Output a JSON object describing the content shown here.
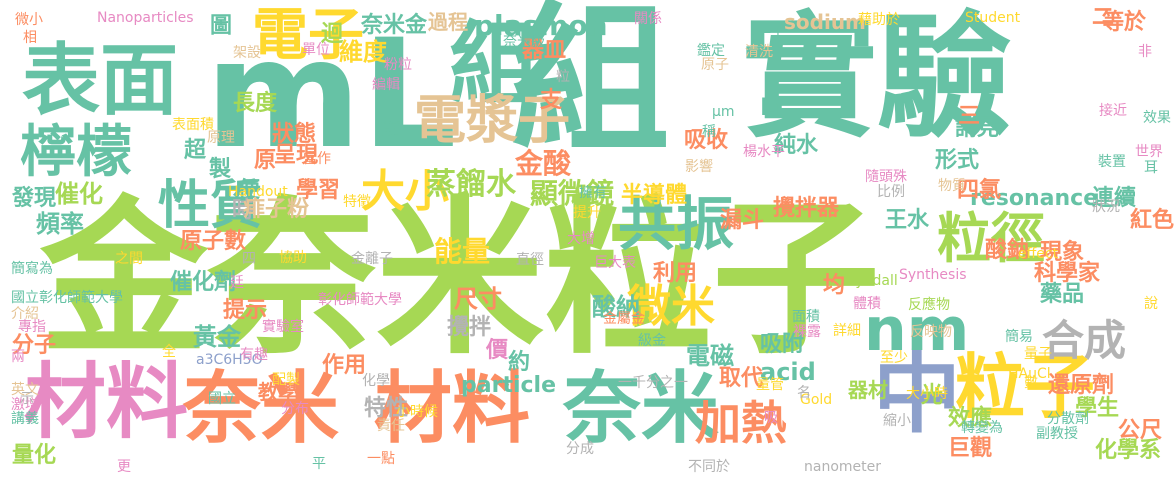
{
  "palette": {
    "green": "#a6d854",
    "teal": "#66c2a5",
    "orange": "#fc8d62",
    "blue": "#8da0cb",
    "pink": "#e78ac3",
    "yellow": "#ffd92f",
    "tan": "#e5c494",
    "gray": "#b3b3b3"
  },
  "words": [
    {
      "text": "金奈米粒子"
    },
    {
      "text": "mL"
    },
    {
      "text": "組"
    },
    {
      "text": "實驗"
    },
    {
      "text": "表面"
    },
    {
      "text": "檸檬"
    },
    {
      "text": "電子"
    },
    {
      "text": "組"
    },
    {
      "text": "材料"
    },
    {
      "text": "奈米"
    },
    {
      "text": "材料"
    },
    {
      "text": "奈米"
    },
    {
      "text": "中"
    },
    {
      "text": "粒子"
    },
    {
      "text": "nm"
    },
    {
      "text": "電漿子"
    },
    {
      "text": "粒徑"
    },
    {
      "text": "共振"
    },
    {
      "text": "性質"
    },
    {
      "text": "大小"
    },
    {
      "text": "微米"
    },
    {
      "text": "合成"
    },
    {
      "text": "加熱"
    },
    {
      "text": "plasmon"
    },
    {
      "text": "蒸餾水"
    },
    {
      "text": "金酸"
    },
    {
      "text": "顯微鏡"
    },
    {
      "text": "能量"
    },
    {
      "text": "催化"
    },
    {
      "text": "頻率"
    },
    {
      "text": "維度"
    },
    {
      "text": "過程"
    },
    {
      "text": "器皿"
    },
    {
      "text": "圖"
    },
    {
      "text": "長度"
    },
    {
      "text": "狀態"
    },
    {
      "text": "呈現"
    },
    {
      "text": "學習"
    },
    {
      "text": "原子數"
    },
    {
      "text": "催化劑"
    },
    {
      "text": "黃金"
    },
    {
      "text": "利用"
    },
    {
      "text": "尺寸"
    },
    {
      "text": "酸納"
    },
    {
      "text": "電磁"
    },
    {
      "text": "吸附"
    },
    {
      "text": "acid"
    },
    {
      "text": "取代"
    },
    {
      "text": "半導體"
    },
    {
      "text": "漏斗"
    },
    {
      "text": "攪拌器"
    },
    {
      "text": "王水"
    },
    {
      "text": "現象"
    },
    {
      "text": "藥品"
    },
    {
      "text": "學生"
    },
    {
      "text": "還原劑"
    },
    {
      "text": "效應"
    },
    {
      "text": "化學系"
    },
    {
      "text": "巨觀"
    },
    {
      "text": "公尺"
    },
    {
      "text": "酸鈉"
    },
    {
      "text": "科學家"
    },
    {
      "text": "分子"
    },
    {
      "text": "量化"
    },
    {
      "text": "教學"
    },
    {
      "text": "器材"
    },
    {
      "text": "resonance"
    },
    {
      "text": "連續"
    },
    {
      "text": "四氯"
    },
    {
      "text": "紅色"
    },
    {
      "text": "sodium"
    },
    {
      "text": "等於"
    },
    {
      "text": "吸收"
    },
    {
      "text": "純水"
    },
    {
      "text": "形式"
    },
    {
      "text": "請見"
    },
    {
      "text": "particle"
    },
    {
      "text": "價"
    },
    {
      "text": "約"
    },
    {
      "text": "攪拌"
    },
    {
      "text": "特性"
    },
    {
      "text": "作用"
    },
    {
      "text": "提示"
    },
    {
      "text": "原"
    },
    {
      "text": "超"
    },
    {
      "text": "製"
    },
    {
      "text": "便"
    },
    {
      "text": "時"
    },
    {
      "text": "節"
    },
    {
      "text": "迴"
    },
    {
      "text": "支"
    },
    {
      "text": "M"
    },
    {
      "text": "光"
    },
    {
      "text": "均"
    },
    {
      "text": "發現"
    },
    {
      "text": "二"
    },
    {
      "text": "三"
    },
    {
      "text": "痱子粉"
    },
    {
      "text": "奈米金"
    },
    {
      "text": "Nanoparticles"
    },
    {
      "text": "Student"
    },
    {
      "text": "Handout"
    },
    {
      "text": "Synthesis"
    },
    {
      "text": "Tyndall"
    },
    {
      "text": "effect"
    },
    {
      "text": "HAuCl"
    },
    {
      "text": "a3C6H5O"
    },
    {
      "text": "nanometer"
    },
    {
      "text": "Gold"
    },
    {
      "text": "國立彰化師範大學"
    },
    {
      "text": "彰化師範大學"
    },
    {
      "text": "實驗室"
    },
    {
      "text": "簡寫為"
    },
    {
      "text": "介紹"
    },
    {
      "text": "專指"
    },
    {
      "text": "英文"
    },
    {
      "text": "講義"
    },
    {
      "text": "激增"
    },
    {
      "text": "兩"
    },
    {
      "text": "微小"
    },
    {
      "text": "相"
    },
    {
      "text": "架設"
    },
    {
      "text": "單位"
    },
    {
      "text": "粉粒"
    },
    {
      "text": "編輯"
    },
    {
      "text": "藉助於"
    },
    {
      "text": "關係"
    },
    {
      "text": "一千"
    },
    {
      "text": "鑑定"
    },
    {
      "text": "原子"
    },
    {
      "text": "清洗"
    },
    {
      "text": "接近"
    },
    {
      "text": "非"
    },
    {
      "text": "效果"
    },
    {
      "text": "世界"
    },
    {
      "text": "耳"
    },
    {
      "text": "說"
    },
    {
      "text": "表面積"
    },
    {
      "text": "原理"
    },
    {
      "text": "當作"
    },
    {
      "text": "協助"
    },
    {
      "text": "特徵"
    },
    {
      "text": "影響"
    },
    {
      "text": "楊水平"
    },
    {
      "text": "比例"
    },
    {
      "text": "狀況"
    },
    {
      "text": "物質"
    },
    {
      "text": "裝置"
    },
    {
      "text": "簡易"
    },
    {
      "text": "分散劑"
    },
    {
      "text": "副教授"
    },
    {
      "text": "數"
    },
    {
      "text": "量子"
    },
    {
      "text": "體積"
    },
    {
      "text": "詳細"
    },
    {
      "text": "反映物"
    },
    {
      "text": "至少"
    },
    {
      "text": "反應物"
    },
    {
      "text": "面積"
    },
    {
      "text": "裸露"
    },
    {
      "text": "擁有"
    },
    {
      "text": "大增"
    },
    {
      "text": "提升"
    },
    {
      "text": "巨大表"
    },
    {
      "text": "金屬金"
    },
    {
      "text": "國立"
    },
    {
      "text": "一點"
    },
    {
      "text": "責任"
    },
    {
      "text": "化學"
    },
    {
      "text": "分布"
    },
    {
      "text": "配製"
    },
    {
      "text": "有趣"
    },
    {
      "text": "全"
    },
    {
      "text": "之間"
    },
    {
      "text": "金離子"
    },
    {
      "text": "直徑"
    },
    {
      "text": "小時候"
    },
    {
      "text": "級金"
    },
    {
      "text": "一千分之一"
    },
    {
      "text": "不同於"
    },
    {
      "text": "更"
    },
    {
      "text": "平"
    },
    {
      "text": "示"
    },
    {
      "text": "吸"
    },
    {
      "text": "名"
    },
    {
      "text": "量管"
    },
    {
      "text": "廷"
    },
    {
      "text": "四"
    },
    {
      "text": "N"
    },
    {
      "text": "大小時"
    },
    {
      "text": "縮小"
    },
    {
      "text": "轉變為"
    },
    {
      "text": "稱"
    },
    {
      "text": "μm"
    },
    {
      "text": "分成"
    },
    {
      "text": "隨頭殊"
    },
    {
      "text": "奈米級"
    },
    {
      "text": "粒"
    }
  ]
}
